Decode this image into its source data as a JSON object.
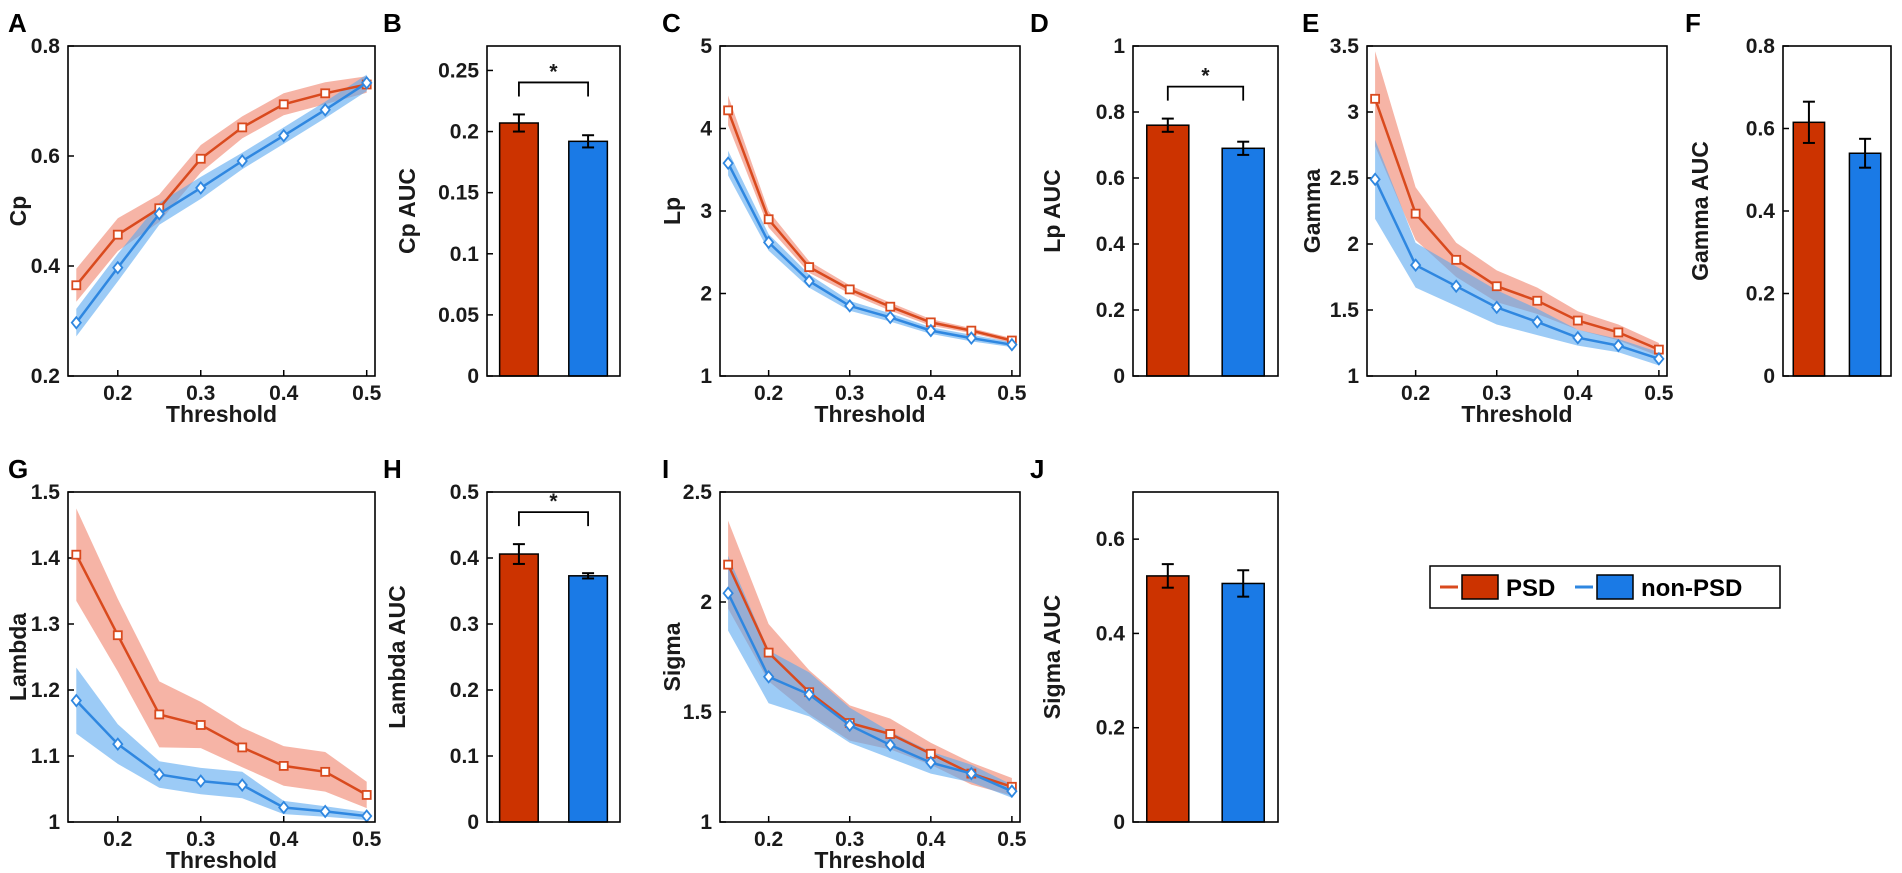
{
  "chart_data": [
    {
      "panel": "A",
      "type": "line",
      "xlabel": "Threshold",
      "ylabel": "Cp",
      "xlim": [
        0.14,
        0.51
      ],
      "ylim": [
        0.2,
        0.8
      ],
      "xticks": [
        "0.2",
        "0.3",
        "0.4",
        "0.5"
      ],
      "yticks": [
        "0.2",
        "0.4",
        "0.6",
        "0.8"
      ],
      "x": [
        0.15,
        0.2,
        0.25,
        0.3,
        0.35,
        0.4,
        0.45,
        0.5
      ],
      "series": [
        {
          "name": "PSD",
          "values": [
            0.365,
            0.457,
            0.505,
            0.595,
            0.652,
            0.694,
            0.714,
            0.73
          ],
          "err": [
            0.03,
            0.03,
            0.025,
            0.025,
            0.02,
            0.02,
            0.02,
            0.015
          ]
        },
        {
          "name": "non-PSD",
          "values": [
            0.297,
            0.397,
            0.495,
            0.542,
            0.591,
            0.637,
            0.684,
            0.733
          ],
          "err": [
            0.025,
            0.025,
            0.02,
            0.02,
            0.015,
            0.015,
            0.015,
            0.015
          ]
        }
      ]
    },
    {
      "panel": "B",
      "type": "bar",
      "ylabel": "Cp AUC",
      "ylim": [
        0,
        0.27
      ],
      "yticks": [
        "0",
        "0.05",
        "0.1",
        "0.15",
        "0.2",
        "0.25"
      ],
      "categories": [
        "PSD",
        "non-PSD"
      ],
      "values": [
        0.207,
        0.192
      ],
      "err": [
        0.007,
        0.005
      ],
      "significance": "*"
    },
    {
      "panel": "C",
      "type": "line",
      "xlabel": "Threshold",
      "ylabel": "Lp",
      "xlim": [
        0.14,
        0.51
      ],
      "ylim": [
        1,
        5
      ],
      "xticks": [
        "0.2",
        "0.3",
        "0.4",
        "0.5"
      ],
      "yticks": [
        "1",
        "2",
        "3",
        "4",
        "5"
      ],
      "x": [
        0.15,
        0.2,
        0.25,
        0.3,
        0.35,
        0.4,
        0.45,
        0.5
      ],
      "series": [
        {
          "name": "PSD",
          "values": [
            4.22,
            2.9,
            2.32,
            2.05,
            1.84,
            1.65,
            1.55,
            1.43
          ],
          "err": [
            0.18,
            0.1,
            0.07,
            0.05,
            0.05,
            0.04,
            0.03,
            0.03
          ]
        },
        {
          "name": "non-PSD",
          "values": [
            3.58,
            2.62,
            2.15,
            1.85,
            1.71,
            1.55,
            1.46,
            1.38
          ],
          "err": [
            0.15,
            0.1,
            0.08,
            0.06,
            0.05,
            0.04,
            0.04,
            0.03
          ]
        }
      ]
    },
    {
      "panel": "D",
      "type": "bar",
      "ylabel": "Lp AUC",
      "ylim": [
        0,
        1
      ],
      "yticks": [
        "0",
        "0.2",
        "0.4",
        "0.6",
        "0.8",
        "1"
      ],
      "categories": [
        "PSD",
        "non-PSD"
      ],
      "values": [
        0.76,
        0.69
      ],
      "err": [
        0.02,
        0.02
      ],
      "significance": "*"
    },
    {
      "panel": "E",
      "type": "line",
      "xlabel": "Threshold",
      "ylabel": "Gamma",
      "xlim": [
        0.14,
        0.51
      ],
      "ylim": [
        1,
        3.5
      ],
      "xticks": [
        "0.2",
        "0.3",
        "0.4",
        "0.5"
      ],
      "yticks": [
        "1",
        "1.5",
        "2",
        "2.5",
        "3",
        "3.5"
      ],
      "x": [
        0.15,
        0.2,
        0.25,
        0.3,
        0.35,
        0.4,
        0.45,
        0.5
      ],
      "series": [
        {
          "name": "PSD",
          "values": [
            3.1,
            2.23,
            1.88,
            1.68,
            1.57,
            1.42,
            1.33,
            1.2
          ],
          "err": [
            0.36,
            0.2,
            0.13,
            0.12,
            0.1,
            0.07,
            0.06,
            0.05
          ]
        },
        {
          "name": "non-PSD",
          "values": [
            2.49,
            1.84,
            1.68,
            1.52,
            1.41,
            1.29,
            1.23,
            1.13
          ],
          "err": [
            0.3,
            0.17,
            0.15,
            0.13,
            0.1,
            0.06,
            0.05,
            0.05
          ]
        }
      ]
    },
    {
      "panel": "F",
      "type": "bar",
      "ylabel": "Gamma AUC",
      "ylim": [
        0,
        0.8
      ],
      "yticks": [
        "0",
        "0.2",
        "0.4",
        "0.6",
        "0.8"
      ],
      "categories": [
        "PSD",
        "non-PSD"
      ],
      "values": [
        0.615,
        0.54
      ],
      "err": [
        0.05,
        0.035
      ],
      "significance": ""
    },
    {
      "panel": "G",
      "type": "line",
      "xlabel": "Threshold",
      "ylabel": "Lambda",
      "xlim": [
        0.14,
        0.51
      ],
      "ylim": [
        1,
        1.5
      ],
      "xticks": [
        "0.2",
        "0.3",
        "0.4",
        "0.5"
      ],
      "yticks": [
        "1",
        "1.1",
        "1.2",
        "1.3",
        "1.4",
        "1.5"
      ],
      "x": [
        0.15,
        0.2,
        0.25,
        0.3,
        0.35,
        0.4,
        0.45,
        0.5
      ],
      "series": [
        {
          "name": "PSD",
          "values": [
            1.405,
            1.283,
            1.163,
            1.147,
            1.113,
            1.085,
            1.076,
            1.041
          ],
          "err": [
            0.07,
            0.055,
            0.05,
            0.035,
            0.03,
            0.03,
            0.03,
            0.02
          ]
        },
        {
          "name": "non-PSD",
          "values": [
            1.184,
            1.118,
            1.072,
            1.062,
            1.056,
            1.022,
            1.016,
            1.009
          ],
          "err": [
            0.05,
            0.03,
            0.02,
            0.02,
            0.02,
            0.01,
            0.008,
            0.006
          ]
        }
      ]
    },
    {
      "panel": "H",
      "type": "bar",
      "ylabel": "Lambda AUC",
      "ylim": [
        0,
        0.5
      ],
      "yticks": [
        "0",
        "0.1",
        "0.2",
        "0.3",
        "0.4",
        "0.5"
      ],
      "categories": [
        "PSD",
        "non-PSD"
      ],
      "values": [
        0.406,
        0.373
      ],
      "err": [
        0.015,
        0.004
      ],
      "significance": "*"
    },
    {
      "panel": "I",
      "type": "line",
      "xlabel": "Threshold",
      "ylabel": "Sigma",
      "xlim": [
        0.14,
        0.51
      ],
      "ylim": [
        1,
        2.5
      ],
      "xticks": [
        "0.2",
        "0.3",
        "0.4",
        "0.5"
      ],
      "yticks": [
        "1",
        "1.5",
        "2",
        "2.5"
      ],
      "x": [
        0.15,
        0.2,
        0.25,
        0.3,
        0.35,
        0.4,
        0.45,
        0.5
      ],
      "series": [
        {
          "name": "PSD",
          "values": [
            2.17,
            1.77,
            1.59,
            1.45,
            1.4,
            1.31,
            1.22,
            1.16
          ],
          "err": [
            0.2,
            0.13,
            0.1,
            0.08,
            0.07,
            0.05,
            0.05,
            0.04
          ]
        },
        {
          "name": "non-PSD",
          "values": [
            2.04,
            1.66,
            1.58,
            1.44,
            1.35,
            1.27,
            1.22,
            1.14
          ],
          "err": [
            0.17,
            0.12,
            0.1,
            0.08,
            0.06,
            0.05,
            0.04,
            0.03
          ]
        }
      ]
    },
    {
      "panel": "J",
      "type": "bar",
      "ylabel": "Sigma AUC",
      "ylim": [
        0,
        0.7
      ],
      "yticks": [
        "0",
        "0.2",
        "0.4",
        "0.6"
      ],
      "categories": [
        "PSD",
        "non-PSD"
      ],
      "values": [
        0.522,
        0.506
      ],
      "err": [
        0.025,
        0.028
      ],
      "significance": ""
    }
  ],
  "legend": {
    "items": [
      {
        "label": "PSD",
        "color": "#d94a1e",
        "fill": "#cc3300"
      },
      {
        "label": "non-PSD",
        "color": "#2f87e0",
        "fill": "#1a7ae6"
      }
    ]
  },
  "colors": {
    "psd_line": "#d94a1e",
    "psd_band": "#f0826a",
    "psd_bar": "#cc3300",
    "non_psd_line": "#2f87e0",
    "non_psd_band": "#5aa8f0",
    "non_psd_bar": "#1a7ae6"
  }
}
